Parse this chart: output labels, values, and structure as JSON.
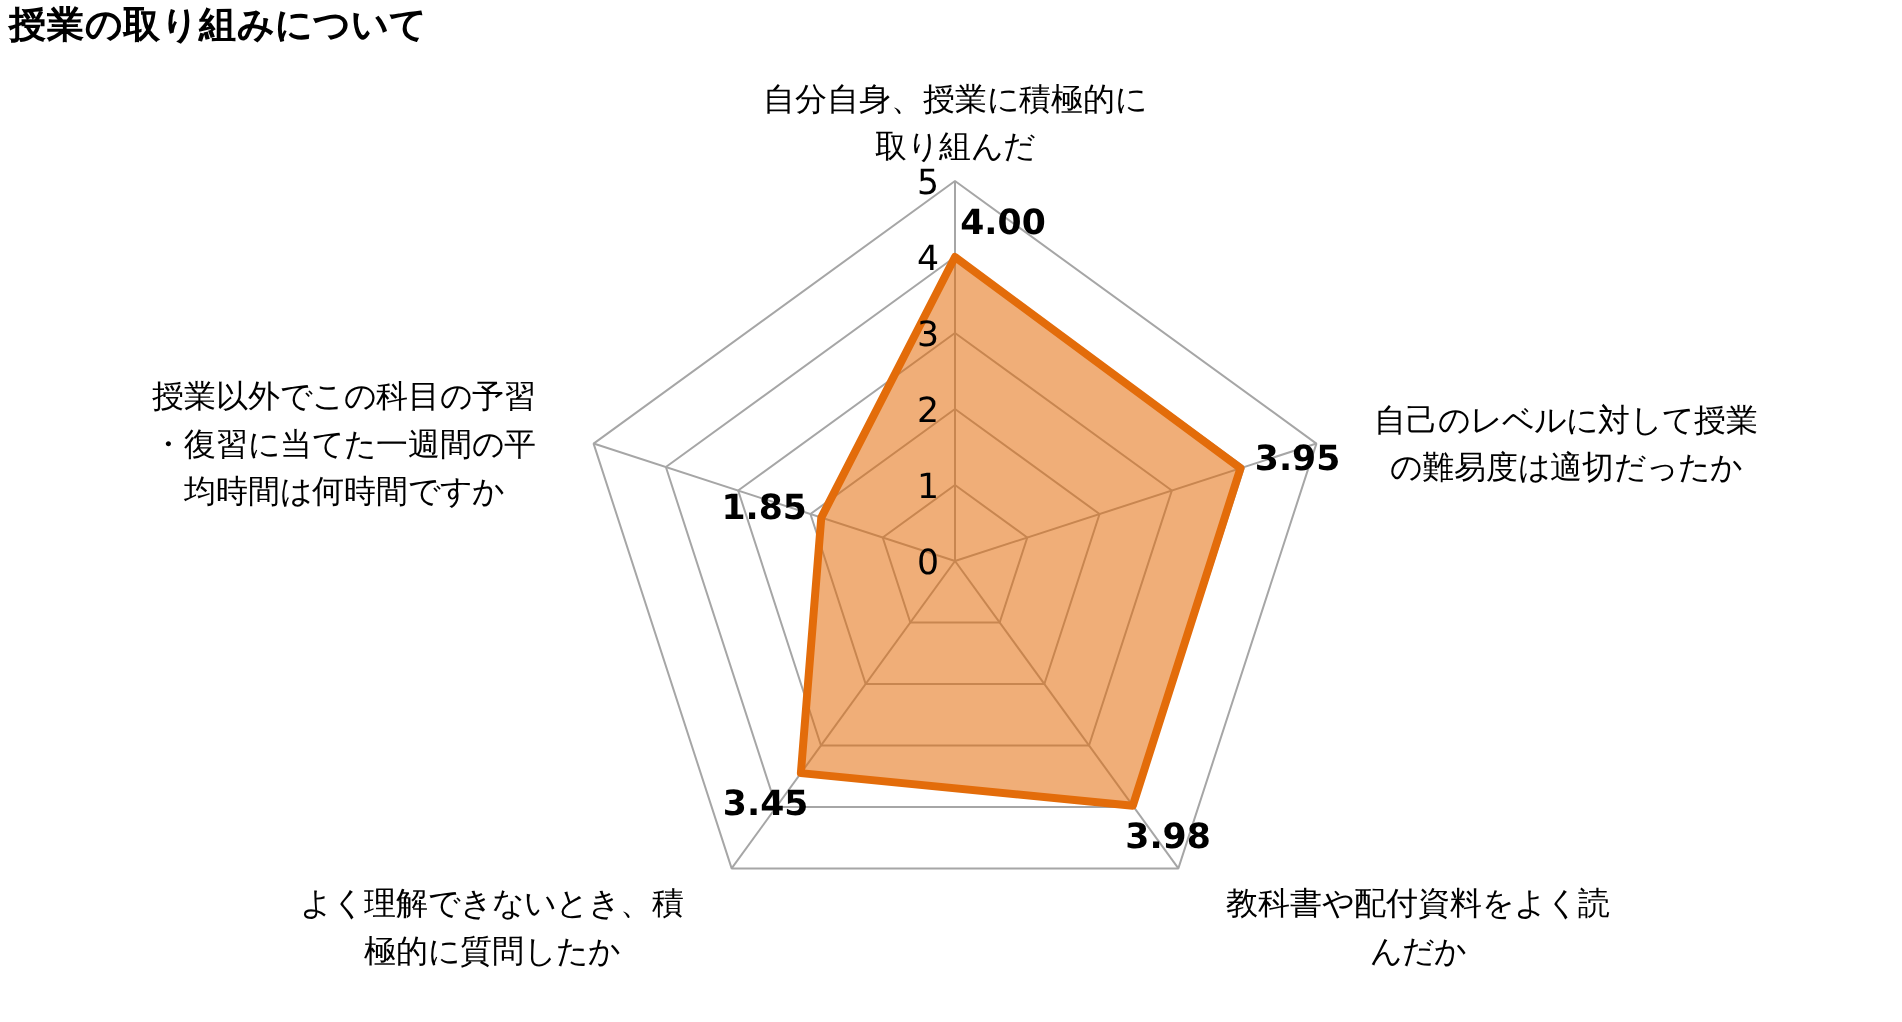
{
  "chart_data": {
    "type": "radar",
    "title": "授業の取り組みについて",
    "categories": [
      "自分自身、授業に積極的に取り組んだ",
      "自己のレベルに対して授業の難易度は適切だったか",
      "教科書や配付資料をよく読んだか",
      "よく理解できないとき、積極的に質問したか",
      "授業以外でこの科目の予習・復習に当てた一週間の平均時間は何時間ですか"
    ],
    "series": [
      {
        "color": "#e36c0a",
        "values": [
          4.0,
          3.95,
          3.98,
          3.45,
          1.85
        ],
        "value_labels": [
          "4.00",
          "3.95",
          "3.98",
          "3.45",
          "1.85"
        ]
      }
    ],
    "ylim": [
      0,
      5
    ],
    "yticks": [
      0,
      1,
      2,
      3,
      4,
      5
    ],
    "grid": true
  }
}
